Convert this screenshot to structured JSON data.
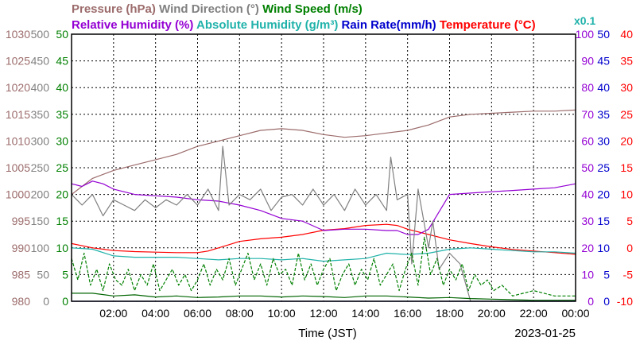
{
  "chart_data": {
    "type": "line",
    "date": "2023-01-25",
    "xlabel": "Time (JST)",
    "x_ticks": [
      "02:00",
      "04:00",
      "06:00",
      "08:00",
      "10:00",
      "12:00",
      "14:00",
      "16:00",
      "18:00",
      "20:00",
      "22:00",
      "00:00"
    ],
    "x_range_hours": [
      0,
      24
    ],
    "grid": true,
    "legend_row1": [
      {
        "key": "pressure",
        "text": "Pressure (hPa)",
        "color": "#9c6b6b"
      },
      {
        "key": "wind_dir",
        "text": "Wind Direction (°)",
        "color": "#808080"
      },
      {
        "key": "wind_speed",
        "text": "Wind Speed (m/s)",
        "color": "#008000"
      }
    ],
    "legend_row2": [
      {
        "key": "rh",
        "text": "Relative Humidity (%)",
        "color": "#9400d3"
      },
      {
        "key": "ah",
        "text": "Absolute Humidity (g/m³)",
        "color": "#20b2aa"
      },
      {
        "key": "rain",
        "text": "Rain Rate(mm/h)",
        "color": "#0000cd"
      },
      {
        "key": "temp",
        "text": "Temperature (°C)",
        "color": "#ff0000"
      }
    ],
    "ah_scale_note": "x0.1",
    "axes": {
      "pressure": {
        "range": [
          980,
          1030
        ],
        "ticks": [
          "1030",
          "1025",
          "1020",
          "1015",
          "1010",
          "1005",
          "1000",
          "995",
          "990",
          "985",
          "980"
        ],
        "color": "#9c6b6b"
      },
      "wind_dir": {
        "range": [
          0,
          500
        ],
        "ticks": [
          "500",
          "450",
          "400",
          "350",
          "300",
          "250",
          "200",
          "150",
          "100",
          "50",
          "0"
        ],
        "color": "#808080"
      },
      "wind_speed": {
        "range": [
          0,
          50
        ],
        "ticks": [
          "50",
          "45",
          "40",
          "35",
          "30",
          "25",
          "20",
          "15",
          "10",
          "5",
          "0"
        ],
        "color": "#008000"
      },
      "rh": {
        "range": [
          0,
          100
        ],
        "ticks": [
          "100",
          "90",
          "80",
          "70",
          "60",
          "50",
          "40",
          "30",
          "20",
          "10",
          "0"
        ],
        "color": "#9400d3"
      },
      "rain": {
        "range": [
          0,
          50
        ],
        "ticks": [
          "50",
          "45",
          "40",
          "35",
          "30",
          "25",
          "20",
          "15",
          "10",
          "5",
          "0"
        ],
        "color": "#0000cd"
      },
      "temp": {
        "range": [
          -10,
          40
        ],
        "ticks": [
          "40",
          "35",
          "30",
          "25",
          "20",
          "15",
          "10",
          "5",
          "0",
          "-5",
          "-10"
        ],
        "color": "#ff0000"
      }
    },
    "series": [
      {
        "name": "Pressure (hPa)",
        "axis": "pressure",
        "color": "#9c6b6b",
        "dash": "",
        "x": [
          0,
          1,
          2,
          3,
          4,
          5,
          6,
          7,
          8,
          9,
          10,
          11,
          12,
          13,
          14,
          15,
          16,
          17,
          18,
          19,
          20,
          21,
          22,
          23,
          24
        ],
        "y": [
          1000,
          1003,
          1004.5,
          1005.5,
          1006.5,
          1007.5,
          1009,
          1010,
          1011,
          1012,
          1012.3,
          1012,
          1011.2,
          1010.7,
          1011,
          1011.5,
          1012,
          1013,
          1014.5,
          1015,
          1015.2,
          1015.4,
          1015.6,
          1015.6,
          1015.8
        ]
      },
      {
        "name": "Temperature (°C)",
        "axis": "temp",
        "color": "#ff0000",
        "dash": "",
        "x": [
          0,
          1,
          2,
          3,
          4,
          5,
          6,
          6.5,
          7,
          7.5,
          8,
          9,
          10,
          11,
          12,
          13,
          14,
          15,
          15.5,
          16,
          17,
          18,
          19,
          20,
          21,
          22,
          23,
          24
        ],
        "y": [
          0.8,
          0,
          -0.5,
          -0.7,
          -0.8,
          -0.9,
          -0.9,
          -0.6,
          0,
          0.6,
          1.2,
          1.7,
          2,
          2.5,
          3.3,
          3.6,
          4.2,
          4.4,
          4.2,
          3.5,
          2.5,
          1.5,
          0.8,
          0.2,
          -0.3,
          -0.6,
          -0.9,
          -1.2
        ]
      },
      {
        "name": "Relative Humidity (%)",
        "axis": "rh",
        "color": "#9400d3",
        "dash": "",
        "x": [
          0,
          0.5,
          1,
          1.5,
          2,
          3,
          4,
          5,
          6,
          7,
          8,
          9,
          10,
          11,
          12,
          13,
          14,
          15,
          15.5,
          16,
          16.5,
          17,
          18,
          19,
          20,
          21,
          22,
          23,
          24
        ],
        "y": [
          44,
          43,
          45,
          44,
          42,
          40,
          39.5,
          39,
          38,
          37.5,
          36,
          34,
          31,
          30,
          26.5,
          27,
          27,
          26.5,
          26.5,
          25,
          25,
          27,
          40,
          40.5,
          41,
          41.5,
          42,
          42.5,
          44
        ]
      },
      {
        "name": "Absolute Humidity (g/m³)",
        "axis": "rh",
        "color": "#20b2aa",
        "dash": "",
        "x": [
          0,
          1,
          2,
          3,
          4,
          5,
          6,
          7,
          8,
          9,
          10,
          11,
          12,
          13,
          14,
          15,
          16,
          17,
          18,
          19,
          20,
          21,
          22,
          23,
          24
        ],
        "y": [
          20,
          19.5,
          17,
          16.5,
          16.5,
          16.5,
          16,
          15.5,
          16,
          16,
          15.5,
          16,
          15,
          15.5,
          16,
          18,
          17.5,
          18,
          19.5,
          20,
          19.5,
          19,
          18.5,
          18.5,
          18
        ]
      },
      {
        "name": "Wind Direction (°)",
        "axis": "wind_dir",
        "color": "#808080",
        "dash": "",
        "x": [
          0,
          0.5,
          1,
          1.5,
          2,
          2.5,
          3,
          3.5,
          4,
          4.5,
          5,
          5.5,
          6,
          6.5,
          7,
          7.2,
          7.5,
          8,
          8.5,
          9,
          9.5,
          10,
          10.5,
          11,
          11.5,
          12,
          12.5,
          13,
          13.5,
          14,
          14.5,
          15,
          15.2,
          15.5,
          16,
          16.2,
          16.5,
          17,
          17.2,
          17.5,
          18,
          18.5,
          19
        ],
        "y": [
          200,
          180,
          200,
          160,
          190,
          180,
          170,
          190,
          175,
          190,
          180,
          200,
          180,
          210,
          170,
          290,
          180,
          200,
          190,
          210,
          170,
          195,
          200,
          180,
          210,
          180,
          200,
          170,
          210,
          180,
          200,
          170,
          270,
          190,
          200,
          70,
          210,
          100,
          150,
          60,
          90,
          70,
          0
        ]
      },
      {
        "name": "Wind Speed (m/s)",
        "axis": "wind_speed",
        "color": "#008000",
        "dash": "4,2",
        "x": [
          0,
          0.3,
          0.6,
          0.9,
          1.2,
          1.5,
          1.8,
          2.1,
          2.4,
          2.7,
          3,
          3.3,
          3.6,
          3.9,
          4.2,
          4.5,
          4.8,
          5.1,
          5.4,
          5.7,
          6,
          6.3,
          6.6,
          6.9,
          7.2,
          7.5,
          7.8,
          8.1,
          8.4,
          8.7,
          9,
          9.3,
          9.6,
          9.9,
          10.2,
          10.5,
          10.8,
          11.1,
          11.4,
          11.7,
          12,
          12.3,
          12.6,
          12.9,
          13.2,
          13.5,
          13.8,
          14.1,
          14.4,
          14.7,
          15,
          15.3,
          15.6,
          15.9,
          16.2,
          16.5,
          16.8,
          17.1,
          17.4,
          17.7,
          18,
          18.3,
          18.6,
          18.9,
          19.2,
          19.5,
          19.8,
          20.1,
          20.5,
          21,
          22,
          23,
          24
        ],
        "y": [
          8,
          4,
          9,
          3,
          6,
          2,
          7,
          4,
          3,
          6,
          2,
          5,
          3,
          7,
          2,
          4,
          6,
          3,
          5,
          2,
          4,
          7,
          3,
          6,
          4,
          8,
          3,
          6,
          9,
          4,
          7,
          3,
          8,
          5,
          6,
          3,
          9,
          4,
          7,
          3,
          6,
          8,
          2,
          5,
          7,
          3,
          6,
          4,
          8,
          3,
          5,
          7,
          2,
          6,
          9,
          3,
          12,
          5,
          8,
          3,
          6,
          4,
          7,
          2,
          5,
          3,
          4,
          2,
          3,
          1,
          2,
          1,
          1
        ]
      },
      {
        "name": "Wind Speed (m/s)",
        "axis": "wind_speed",
        "color": "#006400",
        "dash": "",
        "x": [
          0,
          1,
          2,
          3,
          4,
          5,
          6,
          7,
          8,
          9,
          10,
          11,
          12,
          13,
          14,
          15,
          16,
          17,
          18,
          19,
          20,
          21,
          22,
          23,
          24
        ],
        "y": [
          1.5,
          1.5,
          1,
          1.2,
          0.8,
          1,
          0.7,
          0.8,
          1,
          1,
          0.8,
          1,
          0.9,
          0.7,
          1,
          1,
          0.8,
          0.6,
          0.7,
          0.5,
          0.4,
          0.3,
          0.2,
          0.2,
          0.2
        ]
      },
      {
        "name": "Rain Rate(mm/h)",
        "axis": "rain",
        "color": "#0000cd",
        "dash": "",
        "x": [
          0,
          24
        ],
        "y": [
          0,
          0
        ]
      }
    ]
  }
}
